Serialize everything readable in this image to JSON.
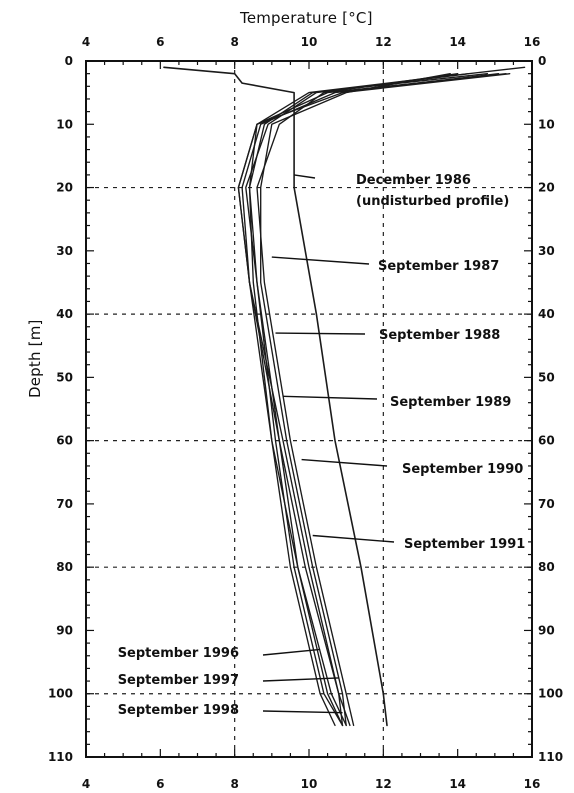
{
  "chart_data": {
    "type": "line",
    "xlabel": "Temperature [°C]",
    "ylabel": "Depth [m]",
    "x_ticks": [
      4,
      6,
      8,
      10,
      12,
      14,
      16
    ],
    "y_ticks": [
      0,
      10,
      20,
      30,
      40,
      50,
      60,
      70,
      80,
      90,
      100,
      110
    ],
    "xlim": [
      4,
      16
    ],
    "ylim": [
      0,
      110
    ],
    "grid": "dashed",
    "series": [
      {
        "name": "December 1986 (undisturbed profile)",
        "points": [
          [
            6.1,
            1.0
          ],
          [
            8.0,
            2.0
          ],
          [
            8.2,
            3.5
          ],
          [
            9.6,
            5.0
          ],
          [
            9.6,
            20.0
          ],
          [
            10.2,
            40.0
          ],
          [
            10.7,
            60.0
          ],
          [
            11.4,
            80.0
          ],
          [
            12.0,
            100.0
          ],
          [
            12.1,
            105.0
          ]
        ]
      },
      {
        "name": "September 1987",
        "points": [
          [
            15.3,
            2.0
          ],
          [
            10.5,
            5.0
          ],
          [
            8.6,
            10.0
          ],
          [
            8.4,
            20.0
          ],
          [
            8.6,
            35.0
          ],
          [
            9.1,
            60.0
          ],
          [
            9.6,
            80.0
          ],
          [
            10.4,
            100.0
          ],
          [
            10.9,
            105.0
          ]
        ]
      },
      {
        "name": "September 1988",
        "points": [
          [
            14.8,
            2.0
          ],
          [
            10.1,
            5.0
          ],
          [
            8.8,
            10.0
          ],
          [
            8.4,
            20.0
          ],
          [
            8.5,
            35.0
          ],
          [
            9.0,
            60.0
          ],
          [
            9.7,
            80.0
          ],
          [
            10.6,
            100.0
          ],
          [
            11.0,
            105.0
          ]
        ]
      },
      {
        "name": "September 1989",
        "points": [
          [
            14.3,
            2.0
          ],
          [
            10.2,
            5.0
          ],
          [
            8.9,
            10.0
          ],
          [
            8.3,
            20.0
          ],
          [
            8.6,
            35.0
          ],
          [
            9.2,
            60.0
          ],
          [
            9.9,
            80.0
          ],
          [
            10.8,
            100.0
          ],
          [
            11.1,
            105.0
          ]
        ]
      },
      {
        "name": "September 1990",
        "points": [
          [
            14.0,
            2.0
          ],
          [
            10.4,
            5.0
          ],
          [
            9.2,
            10.0
          ],
          [
            8.6,
            20.0
          ],
          [
            8.8,
            35.0
          ],
          [
            9.5,
            60.0
          ],
          [
            10.2,
            80.0
          ],
          [
            11.0,
            100.0
          ],
          [
            11.2,
            105.0
          ]
        ]
      },
      {
        "name": "September 1991",
        "points": [
          [
            13.8,
            2.0
          ],
          [
            11.0,
            5.0
          ],
          [
            9.0,
            10.0
          ],
          [
            8.7,
            20.0
          ],
          [
            8.7,
            35.0
          ],
          [
            9.4,
            60.0
          ],
          [
            10.1,
            80.0
          ],
          [
            10.9,
            100.0
          ],
          [
            11.0,
            105.0
          ]
        ]
      },
      {
        "name": "September 1996",
        "points": [
          [
            15.8,
            1.0
          ],
          [
            12.8,
            3.0
          ],
          [
            10.0,
            5.0
          ],
          [
            8.6,
            10.0
          ],
          [
            8.1,
            20.0
          ],
          [
            8.4,
            35.0
          ],
          [
            9.0,
            60.0
          ],
          [
            9.5,
            80.0
          ],
          [
            10.3,
            100.0
          ],
          [
            10.7,
            105.0
          ]
        ]
      },
      {
        "name": "September 1997",
        "points": [
          [
            15.1,
            2.0
          ],
          [
            10.7,
            5.0
          ],
          [
            8.7,
            10.0
          ],
          [
            8.2,
            20.0
          ],
          [
            8.4,
            35.0
          ],
          [
            9.2,
            60.0
          ],
          [
            9.7,
            80.0
          ],
          [
            10.5,
            100.0
          ],
          [
            10.9,
            105.0
          ]
        ]
      },
      {
        "name": "September 1998",
        "points": [
          [
            15.4,
            2.0
          ],
          [
            10.9,
            5.0
          ],
          [
            8.6,
            10.0
          ],
          [
            8.1,
            20.0
          ],
          [
            8.4,
            35.0
          ],
          [
            9.3,
            60.0
          ],
          [
            10.0,
            80.0
          ],
          [
            10.8,
            100.0
          ],
          [
            10.9,
            105.0
          ]
        ]
      }
    ],
    "annotations": [
      {
        "key": "dec1986",
        "lines": [
          "December 1986",
          "(undisturbed profile)"
        ],
        "target": [
          9.6,
          18.0
        ]
      },
      {
        "key": "sep1987",
        "lines": [
          "September 1987"
        ],
        "target": [
          9.0,
          31.0
        ]
      },
      {
        "key": "sep1988",
        "lines": [
          "September 1988"
        ],
        "target": [
          9.1,
          43.0
        ]
      },
      {
        "key": "sep1989",
        "lines": [
          "September 1989"
        ],
        "target": [
          9.3,
          53.0
        ]
      },
      {
        "key": "sep1990",
        "lines": [
          "September 1990"
        ],
        "target": [
          9.8,
          63.0
        ]
      },
      {
        "key": "sep1991",
        "lines": [
          "September 1991"
        ],
        "target": [
          10.1,
          75.0
        ]
      },
      {
        "key": "sep1996",
        "lines": [
          "September 1996"
        ],
        "target": [
          10.3,
          93.0
        ]
      },
      {
        "key": "sep1997",
        "lines": [
          "September 1997"
        ],
        "target": [
          10.8,
          97.5
        ]
      },
      {
        "key": "sep1998",
        "lines": [
          "September 1998"
        ],
        "target": [
          10.9,
          103.0
        ]
      }
    ]
  }
}
